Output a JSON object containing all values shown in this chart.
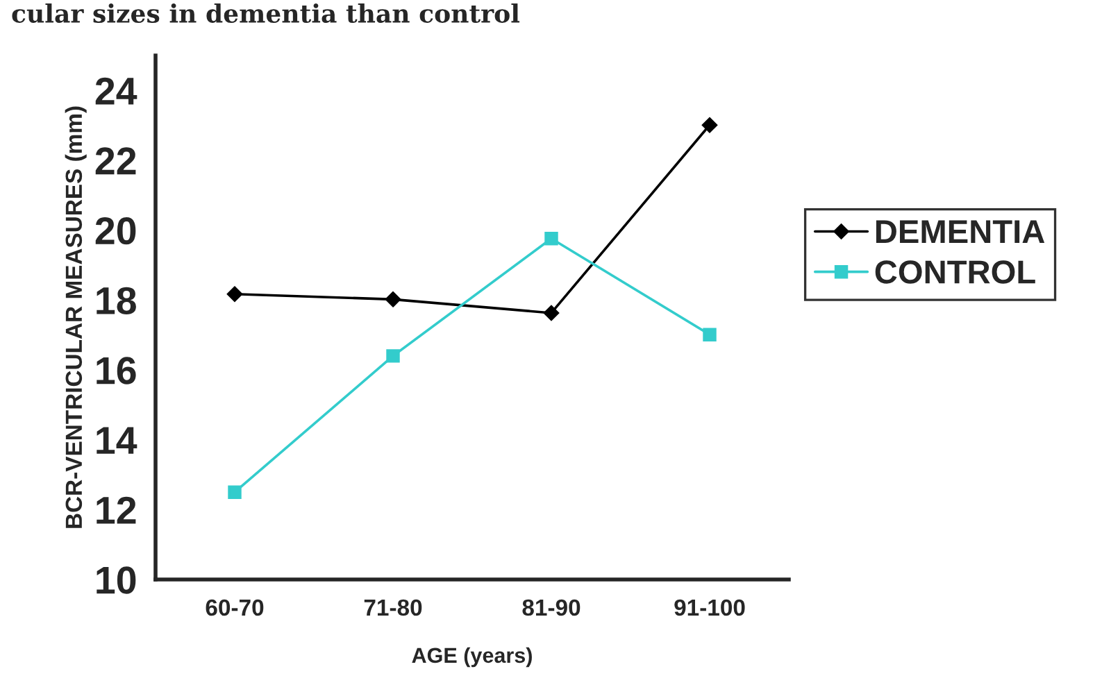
{
  "chart_data": {
    "type": "line",
    "title": "cular sizes in dementia than control",
    "xlabel": "AGE (years)",
    "ylabel": "BCR-VENTRICULAR MEASURES (mm)",
    "categories": [
      "60-70",
      "71-80",
      "81-90",
      "91-100"
    ],
    "series": [
      {
        "name": "DEMENTIA",
        "color": "#000000",
        "marker": "diamond",
        "values": [
          18.17,
          18.02,
          17.63,
          23.01
        ]
      },
      {
        "name": "CONTROL",
        "color": "#33cccc",
        "marker": "square",
        "values": [
          12.5,
          16.4,
          19.76,
          17.01
        ]
      }
    ],
    "ylim": [
      10,
      25
    ],
    "yticks": [
      10,
      12,
      14,
      16,
      18,
      20,
      22,
      24
    ],
    "grid": false,
    "legend": "right",
    "line_style": "solid"
  }
}
